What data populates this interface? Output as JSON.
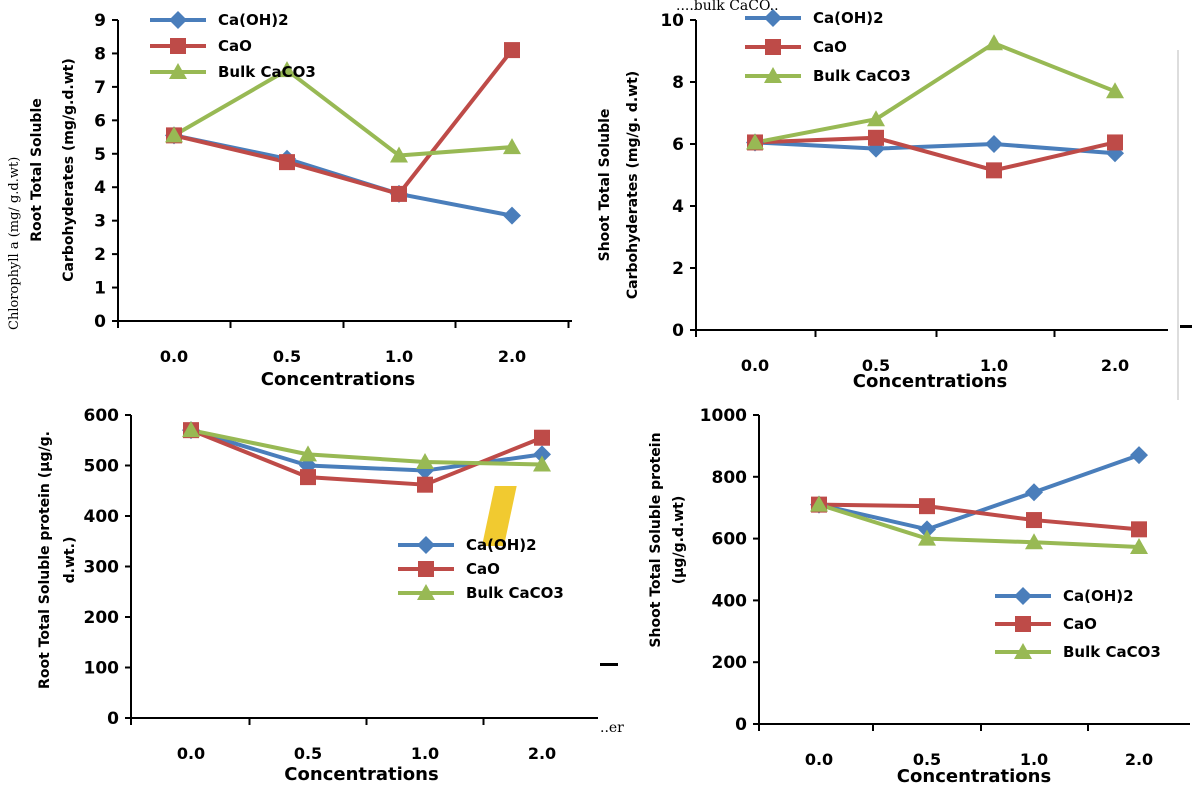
{
  "colors": {
    "Ca(OH)2": "#4a7ebb",
    "CaO": "#be4b48",
    "Bulk CaCO3": "#98b954"
  },
  "markers": {
    "Ca(OH)2": "diamond",
    "CaO": "square",
    "Bulk CaCO3": "triangle"
  },
  "artifacts": {
    "top_fragment": "....bulk CaCO..",
    "mid_fragment": "..er",
    "left_fragment": "Chlorophyll a (mg/ g.d.wt)"
  },
  "chart_data": [
    {
      "type": "line",
      "xlabel": "Concentrations",
      "ylabel": [
        "Root Total Soluble",
        "Carbohyderates (mg/g.d.wt)"
      ],
      "categories": [
        "0.0",
        "0.5",
        "1.0",
        "2.0"
      ],
      "ylim": [
        0,
        9
      ],
      "yticks": [
        "0",
        "1",
        "2",
        "3",
        "4",
        "5",
        "6",
        "7",
        "8",
        "9"
      ],
      "grid": false,
      "legend_position": "top-left",
      "series": [
        {
          "name": "Ca(OH)2",
          "values": [
            5.55,
            4.85,
            3.8,
            3.15
          ]
        },
        {
          "name": "CaO",
          "values": [
            5.55,
            4.75,
            3.8,
            8.1
          ]
        },
        {
          "name": "Bulk CaCO3",
          "values": [
            5.55,
            7.5,
            4.95,
            5.2
          ]
        }
      ]
    },
    {
      "type": "line",
      "xlabel": "Concentrations",
      "ylabel": [
        "Shoot Total Soluble",
        "Carbohyderates (mg/g. d.wt)"
      ],
      "categories": [
        "0.0",
        "0.5",
        "1.0",
        "2.0"
      ],
      "ylim": [
        0,
        10
      ],
      "yticks": [
        "0",
        "2",
        "4",
        "6",
        "8",
        "10"
      ],
      "grid": false,
      "legend_position": "top-left",
      "series": [
        {
          "name": "Ca(OH)2",
          "values": [
            6.05,
            5.85,
            6.0,
            5.7
          ]
        },
        {
          "name": "CaO",
          "values": [
            6.05,
            6.2,
            5.15,
            6.05
          ]
        },
        {
          "name": "Bulk CaCO3",
          "values": [
            6.05,
            6.8,
            9.25,
            7.7
          ]
        }
      ]
    },
    {
      "type": "line",
      "xlabel": "Concentrations",
      "ylabel": [
        "Root Total Soluble protein (µg/g.",
        "d.wt.)"
      ],
      "categories": [
        "0.0",
        "0.5",
        "1.0",
        "2.0"
      ],
      "ylim": [
        0,
        600
      ],
      "yticks": [
        "0",
        "100",
        "200",
        "300",
        "400",
        "500",
        "600"
      ],
      "grid": false,
      "legend_position": "middle-right",
      "series": [
        {
          "name": "Ca(OH)2",
          "values": [
            570,
            500,
            490,
            522
          ]
        },
        {
          "name": "CaO",
          "values": [
            570,
            477,
            462,
            555
          ]
        },
        {
          "name": "Bulk CaCO3",
          "values": [
            570,
            522,
            507,
            502
          ]
        }
      ]
    },
    {
      "type": "line",
      "xlabel": "Concentrations",
      "ylabel": [
        "Shoot Total Soluble protein",
        "(µg/g.d.wt)"
      ],
      "categories": [
        "0.0",
        "0.5",
        "1.0",
        "2.0"
      ],
      "ylim": [
        0,
        1000
      ],
      "yticks": [
        "0",
        "200",
        "400",
        "600",
        "800",
        "1000"
      ],
      "grid": false,
      "legend_position": "bottom-right",
      "series": [
        {
          "name": "Ca(OH)2",
          "values": [
            710,
            630,
            750,
            870
          ]
        },
        {
          "name": "CaO",
          "values": [
            710,
            705,
            660,
            630
          ]
        },
        {
          "name": "Bulk CaCO3",
          "values": [
            710,
            600,
            588,
            573
          ]
        }
      ]
    }
  ]
}
